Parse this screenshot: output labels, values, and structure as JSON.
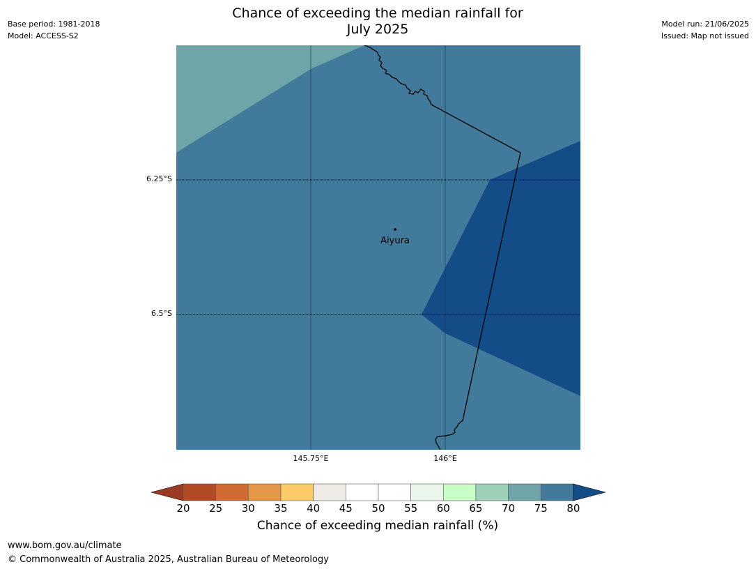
{
  "header": {
    "title_line1": "Chance of exceeding the median rainfall for",
    "title_line2": "July 2025",
    "base_period": "Base period: 1981-2018",
    "model": "Model: ACCESS-S2",
    "model_run": "Model run: 21/06/2025",
    "issued": "Issued: Map not issued"
  },
  "map": {
    "place_name": "Aiyura",
    "lat_labels": [
      "6.25°S",
      "6.5°S"
    ],
    "lon_labels": [
      "145.75°E",
      "146°E"
    ],
    "colors": {
      "band_70_75": "#6fa4a8",
      "band_75_80": "#417a9a",
      "band_above_80": "#144c88",
      "border_line": "#000000"
    }
  },
  "colorbar": {
    "ticks": [
      "20",
      "25",
      "30",
      "35",
      "40",
      "45",
      "50",
      "55",
      "60",
      "65",
      "70",
      "75",
      "80"
    ],
    "colors": [
      "#9c3b24",
      "#b44a25",
      "#d06932",
      "#e39747",
      "#fecb68",
      "#eeeae6",
      "#ffffff",
      "#ffffff",
      "#eaf6e9",
      "#c9fdc6",
      "#9ecfb7",
      "#6fa4a8",
      "#417a9a",
      "#144c88"
    ],
    "label": "Chance of exceeding median rainfall (%)"
  },
  "footer": {
    "url": "www.bom.gov.au/climate",
    "copyright": "© Commonwealth of Australia 2025, Australian Bureau of Meteorology"
  }
}
